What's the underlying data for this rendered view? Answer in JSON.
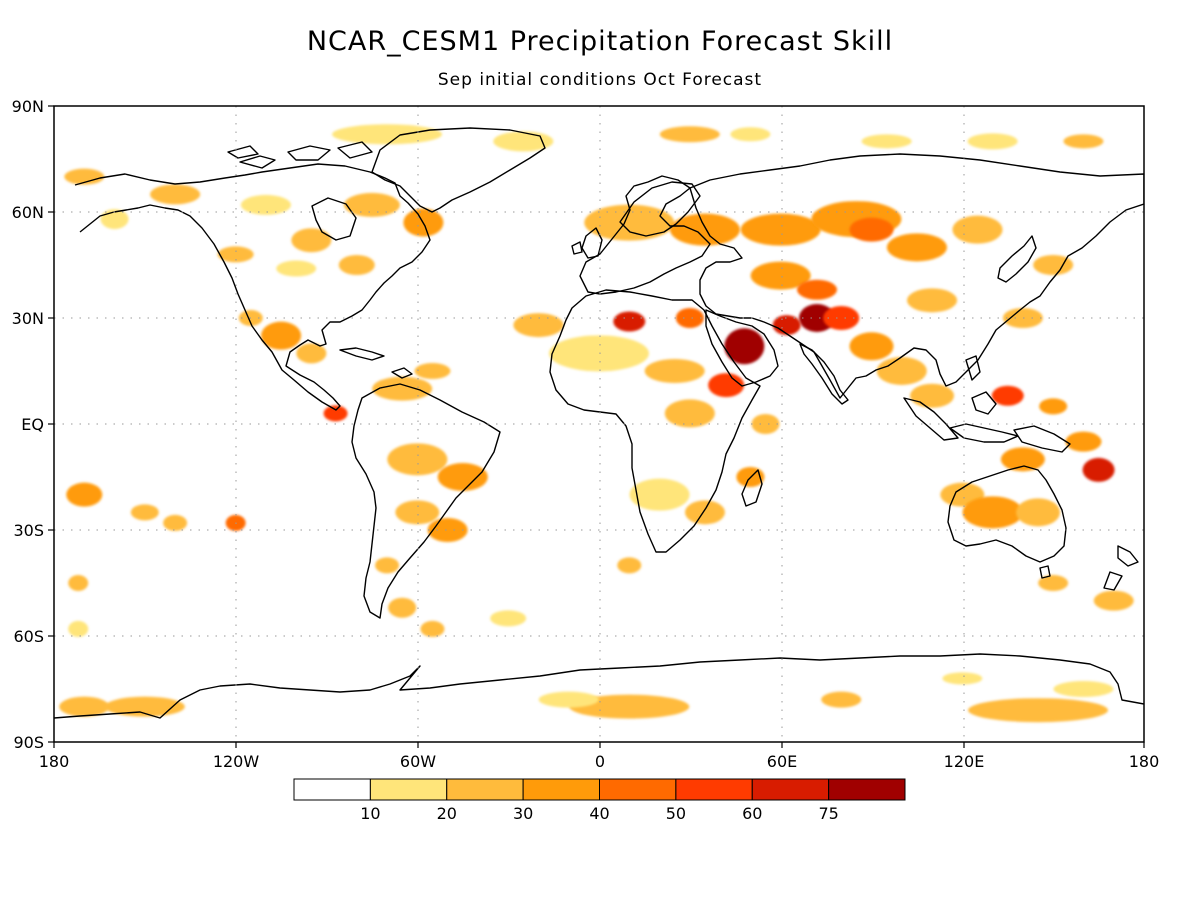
{
  "title": "NCAR_CESM1 Precipitation Forecast Skill",
  "subtitle": "Sep initial conditions  Oct Forecast",
  "lat_labels": [
    "90N",
    "60N",
    "30N",
    "EQ",
    "30S",
    "60S",
    "90S"
  ],
  "lon_labels": [
    "180",
    "120W",
    "60W",
    "0",
    "60E",
    "120E",
    "180"
  ],
  "colorbar": {
    "labels": [
      "10",
      "20",
      "30",
      "40",
      "50",
      "60",
      "75"
    ],
    "colors": [
      "#ffffff",
      "#ffe57a",
      "#ffbb3c",
      "#ff9b0a",
      "#ff6a00",
      "#ff3b00",
      "#d81c00",
      "#a00000"
    ]
  },
  "colors": {
    "coast": "#000000",
    "grid": "#999999"
  },
  "chart_data": {
    "type": "heatmap",
    "title": "NCAR_CESM1 Precipitation Forecast Skill",
    "subtitle": "Sep initial conditions  Oct Forecast",
    "xlim": [
      -180,
      180
    ],
    "ylim": [
      -90,
      90
    ],
    "levels": [
      10,
      20,
      30,
      40,
      50,
      60,
      75
    ],
    "grid": true,
    "highlights": [
      {
        "lon": 48,
        "lat": 22,
        "level": 75
      },
      {
        "lon": 72,
        "lat": 30,
        "level": 75
      },
      {
        "lon": 10,
        "lat": 29,
        "level": 60
      },
      {
        "lon": 90,
        "lat": 56,
        "level": 40
      },
      {
        "lon": 165,
        "lat": -13,
        "level": 60
      },
      {
        "lon": -87,
        "lat": 3,
        "level": 50
      },
      {
        "lon": 42,
        "lat": 11,
        "level": 50
      },
      {
        "lon": 135,
        "lat": 8,
        "level": 50
      },
      {
        "lon": -170,
        "lat": -20,
        "level": 30
      },
      {
        "lon": 10,
        "lat": -80,
        "level": 20
      },
      {
        "lon": 145,
        "lat": -81,
        "level": 20
      }
    ]
  }
}
